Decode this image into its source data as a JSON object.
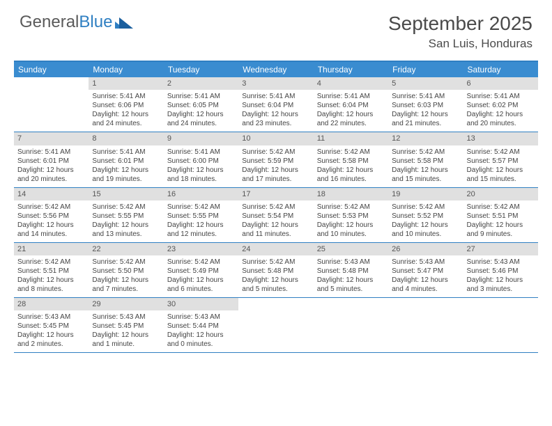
{
  "brand": {
    "part1": "General",
    "part2": "Blue"
  },
  "title": "September 2025",
  "location": "San Luis, Honduras",
  "dow_header_bg": "#3a8cd0",
  "border_color": "#2f7fc2",
  "daynum_bg": "#e0e0e0",
  "days_of_week": [
    "Sunday",
    "Monday",
    "Tuesday",
    "Wednesday",
    "Thursday",
    "Friday",
    "Saturday"
  ],
  "weeks": [
    [
      {
        "n": "",
        "sr": "",
        "ss": "",
        "dl": ""
      },
      {
        "n": "1",
        "sr": "Sunrise: 5:41 AM",
        "ss": "Sunset: 6:06 PM",
        "dl": "Daylight: 12 hours and 24 minutes."
      },
      {
        "n": "2",
        "sr": "Sunrise: 5:41 AM",
        "ss": "Sunset: 6:05 PM",
        "dl": "Daylight: 12 hours and 24 minutes."
      },
      {
        "n": "3",
        "sr": "Sunrise: 5:41 AM",
        "ss": "Sunset: 6:04 PM",
        "dl": "Daylight: 12 hours and 23 minutes."
      },
      {
        "n": "4",
        "sr": "Sunrise: 5:41 AM",
        "ss": "Sunset: 6:04 PM",
        "dl": "Daylight: 12 hours and 22 minutes."
      },
      {
        "n": "5",
        "sr": "Sunrise: 5:41 AM",
        "ss": "Sunset: 6:03 PM",
        "dl": "Daylight: 12 hours and 21 minutes."
      },
      {
        "n": "6",
        "sr": "Sunrise: 5:41 AM",
        "ss": "Sunset: 6:02 PM",
        "dl": "Daylight: 12 hours and 20 minutes."
      }
    ],
    [
      {
        "n": "7",
        "sr": "Sunrise: 5:41 AM",
        "ss": "Sunset: 6:01 PM",
        "dl": "Daylight: 12 hours and 20 minutes."
      },
      {
        "n": "8",
        "sr": "Sunrise: 5:41 AM",
        "ss": "Sunset: 6:01 PM",
        "dl": "Daylight: 12 hours and 19 minutes."
      },
      {
        "n": "9",
        "sr": "Sunrise: 5:41 AM",
        "ss": "Sunset: 6:00 PM",
        "dl": "Daylight: 12 hours and 18 minutes."
      },
      {
        "n": "10",
        "sr": "Sunrise: 5:42 AM",
        "ss": "Sunset: 5:59 PM",
        "dl": "Daylight: 12 hours and 17 minutes."
      },
      {
        "n": "11",
        "sr": "Sunrise: 5:42 AM",
        "ss": "Sunset: 5:58 PM",
        "dl": "Daylight: 12 hours and 16 minutes."
      },
      {
        "n": "12",
        "sr": "Sunrise: 5:42 AM",
        "ss": "Sunset: 5:58 PM",
        "dl": "Daylight: 12 hours and 15 minutes."
      },
      {
        "n": "13",
        "sr": "Sunrise: 5:42 AM",
        "ss": "Sunset: 5:57 PM",
        "dl": "Daylight: 12 hours and 15 minutes."
      }
    ],
    [
      {
        "n": "14",
        "sr": "Sunrise: 5:42 AM",
        "ss": "Sunset: 5:56 PM",
        "dl": "Daylight: 12 hours and 14 minutes."
      },
      {
        "n": "15",
        "sr": "Sunrise: 5:42 AM",
        "ss": "Sunset: 5:55 PM",
        "dl": "Daylight: 12 hours and 13 minutes."
      },
      {
        "n": "16",
        "sr": "Sunrise: 5:42 AM",
        "ss": "Sunset: 5:55 PM",
        "dl": "Daylight: 12 hours and 12 minutes."
      },
      {
        "n": "17",
        "sr": "Sunrise: 5:42 AM",
        "ss": "Sunset: 5:54 PM",
        "dl": "Daylight: 12 hours and 11 minutes."
      },
      {
        "n": "18",
        "sr": "Sunrise: 5:42 AM",
        "ss": "Sunset: 5:53 PM",
        "dl": "Daylight: 12 hours and 10 minutes."
      },
      {
        "n": "19",
        "sr": "Sunrise: 5:42 AM",
        "ss": "Sunset: 5:52 PM",
        "dl": "Daylight: 12 hours and 10 minutes."
      },
      {
        "n": "20",
        "sr": "Sunrise: 5:42 AM",
        "ss": "Sunset: 5:51 PM",
        "dl": "Daylight: 12 hours and 9 minutes."
      }
    ],
    [
      {
        "n": "21",
        "sr": "Sunrise: 5:42 AM",
        "ss": "Sunset: 5:51 PM",
        "dl": "Daylight: 12 hours and 8 minutes."
      },
      {
        "n": "22",
        "sr": "Sunrise: 5:42 AM",
        "ss": "Sunset: 5:50 PM",
        "dl": "Daylight: 12 hours and 7 minutes."
      },
      {
        "n": "23",
        "sr": "Sunrise: 5:42 AM",
        "ss": "Sunset: 5:49 PM",
        "dl": "Daylight: 12 hours and 6 minutes."
      },
      {
        "n": "24",
        "sr": "Sunrise: 5:42 AM",
        "ss": "Sunset: 5:48 PM",
        "dl": "Daylight: 12 hours and 5 minutes."
      },
      {
        "n": "25",
        "sr": "Sunrise: 5:43 AM",
        "ss": "Sunset: 5:48 PM",
        "dl": "Daylight: 12 hours and 5 minutes."
      },
      {
        "n": "26",
        "sr": "Sunrise: 5:43 AM",
        "ss": "Sunset: 5:47 PM",
        "dl": "Daylight: 12 hours and 4 minutes."
      },
      {
        "n": "27",
        "sr": "Sunrise: 5:43 AM",
        "ss": "Sunset: 5:46 PM",
        "dl": "Daylight: 12 hours and 3 minutes."
      }
    ],
    [
      {
        "n": "28",
        "sr": "Sunrise: 5:43 AM",
        "ss": "Sunset: 5:45 PM",
        "dl": "Daylight: 12 hours and 2 minutes."
      },
      {
        "n": "29",
        "sr": "Sunrise: 5:43 AM",
        "ss": "Sunset: 5:45 PM",
        "dl": "Daylight: 12 hours and 1 minute."
      },
      {
        "n": "30",
        "sr": "Sunrise: 5:43 AM",
        "ss": "Sunset: 5:44 PM",
        "dl": "Daylight: 12 hours and 0 minutes."
      },
      {
        "n": "",
        "sr": "",
        "ss": "",
        "dl": ""
      },
      {
        "n": "",
        "sr": "",
        "ss": "",
        "dl": ""
      },
      {
        "n": "",
        "sr": "",
        "ss": "",
        "dl": ""
      },
      {
        "n": "",
        "sr": "",
        "ss": "",
        "dl": ""
      }
    ]
  ]
}
